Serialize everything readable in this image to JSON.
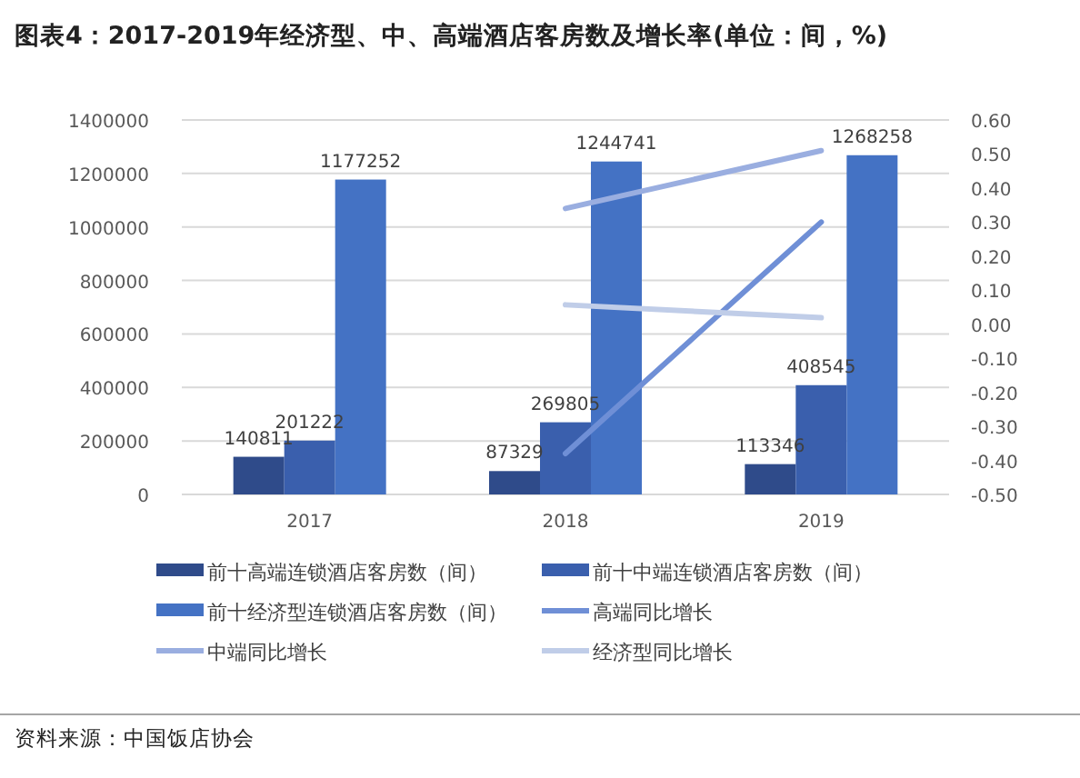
{
  "chart_data": {
    "type": "bar",
    "title": "图表4：2017-2019年经济型、中、高端酒店客房数及增长率(单位：间，%)",
    "categories": [
      "2017",
      "2018",
      "2019"
    ],
    "series": [
      {
        "name": "前十高端连锁酒店客房数（间）",
        "color": "#2f4b8a",
        "values": [
          140811,
          87329,
          113346
        ],
        "value_labels": [
          "140811",
          "87329",
          "113346"
        ]
      },
      {
        "name": "前十中端连锁酒店客房数（间）",
        "color": "#3a5fad",
        "values": [
          201222,
          269805,
          408545
        ],
        "value_labels": [
          "201222",
          "269805",
          "408545"
        ]
      },
      {
        "name": "前十经济型连锁酒店客房数（间）",
        "color": "#4472c4",
        "values": [
          1177252,
          1244741,
          1268258
        ],
        "value_labels": [
          "1177252",
          "1244741",
          "1268258"
        ]
      },
      {
        "name": "高端同比增长",
        "type": "line",
        "axis": "y2",
        "color": "#6f8fd6",
        "values": [
          null,
          -0.38,
          0.3
        ]
      },
      {
        "name": "中端同比增长",
        "type": "line",
        "axis": "y2",
        "color": "#9aaee0",
        "values": [
          null,
          0.34,
          0.51
        ]
      },
      {
        "name": "经济型同比增长",
        "type": "line",
        "axis": "y2",
        "color": "#c0cde8",
        "values": [
          null,
          0.057,
          0.019
        ]
      }
    ],
    "ylim": [
      0,
      1400000
    ],
    "yticks": [
      0,
      200000,
      400000,
      600000,
      800000,
      1000000,
      1200000,
      1400000
    ],
    "y2lim": [
      -0.5,
      0.6
    ],
    "y2ticks": [
      {
        "value": -0.5,
        "label": "-0.50"
      },
      {
        "value": -0.4,
        "label": "-0.40"
      },
      {
        "value": -0.3,
        "label": "-0.30"
      },
      {
        "value": -0.2,
        "label": "-0.20"
      },
      {
        "value": -0.1,
        "label": "-0.10"
      },
      {
        "value": 0,
        "label": "0.00"
      },
      {
        "value": 0.1,
        "label": "0.10"
      },
      {
        "value": 0.2,
        "label": "0.20"
      },
      {
        "value": 0.3,
        "label": "0.30"
      },
      {
        "value": 0.4,
        "label": "0.40"
      },
      {
        "value": 0.5,
        "label": "0.50"
      },
      {
        "value": 0.6,
        "label": "0.60"
      }
    ],
    "grid": "y",
    "legend": "bottom",
    "line_style": "solid",
    "marker": "none",
    "annotations": [
      "资料来源：中国饭店协会"
    ]
  }
}
